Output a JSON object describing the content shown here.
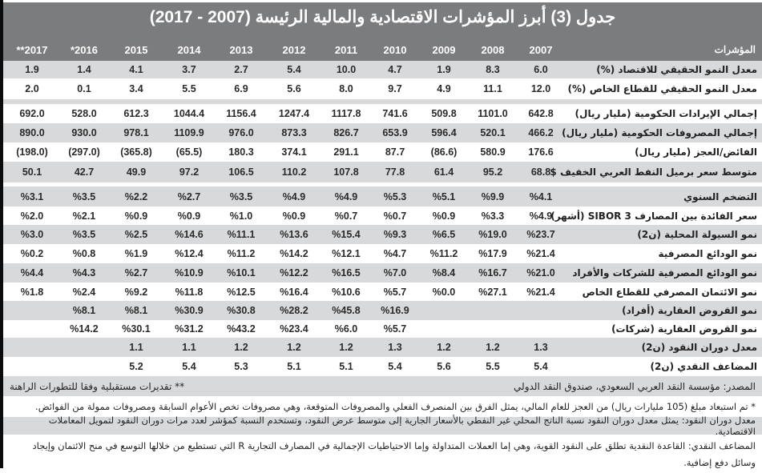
{
  "title": "جدول (3) أبرز المؤشرات الاقتصادية والمالية الرئيسة (2007 - 2017)",
  "header": {
    "indicators_label": "المؤشرات",
    "years": [
      "2007",
      "2008",
      "2009",
      "2010",
      "2011",
      "2012",
      "2013",
      "2014",
      "2015",
      "*2016",
      "**2017"
    ]
  },
  "rows": [
    {
      "label": "معدل النمو الحقيقي للاقتصاد (%)",
      "values": [
        "6.0",
        "8.3",
        "1.9",
        "4.7",
        "10.0",
        "5.4",
        "2.7",
        "3.7",
        "4.1",
        "1.4",
        "1.9"
      ]
    },
    {
      "label": "معدل النمو الحقيقي للقطاع الخاص (%)",
      "values": [
        "12.0",
        "11.1",
        "4.9",
        "9.7",
        "8.0",
        "5.6",
        "6.9",
        "5.5",
        "3.4",
        "0.1",
        "2.0"
      ]
    },
    {
      "label": "إجمالي الإيرادات الحكومية (مليار ريال)",
      "values": [
        "642.8",
        "1101.0",
        "509.8",
        "741.6",
        "1117.8",
        "1247.4",
        "1156.4",
        "1044.4",
        "612.3",
        "528.0",
        "692.0"
      ]
    },
    {
      "label": "إجمالي المصروفات الحكومية (مليار ريال)",
      "values": [
        "466.2",
        "520.1",
        "596.4",
        "653.9",
        "826.7",
        "873.3",
        "976.0",
        "1109.9",
        "978.1",
        "930.0",
        "890.0"
      ]
    },
    {
      "label": "الفائض/العجز (مليار ريال)",
      "values": [
        "176.6",
        "580.9",
        "(86.6)",
        "87.7",
        "291.1",
        "374.1",
        "180.3",
        "(65.5)",
        "(365.8)",
        "(297.0)",
        "(198.0)"
      ]
    },
    {
      "label": "متوسط سعر برميل النفط العربي الخفيف $",
      "values": [
        "68.8",
        "95.2",
        "61.4",
        "77.8",
        "107.8",
        "110.2",
        "106.5",
        "97.2",
        "49.9",
        "42.7",
        "50.1"
      ]
    },
    {
      "label": "التضخم السنوي",
      "values": [
        "%4.1",
        "%9.9",
        "%5.1",
        "%5.3",
        "%4.9",
        "%4.9",
        "%3.5",
        "%2.7",
        "%2.2",
        "%3.5",
        "%3.1"
      ]
    },
    {
      "label": "سعر الفائدة بين المصارف SIBOR 3 (أشهر)",
      "values": [
        "%4.9",
        "%3.3",
        "%0.9",
        "%0.7",
        "%0.7",
        "%0.9",
        "%1.0",
        "%0.9",
        "%0.9",
        "%2.1",
        "%2.0"
      ]
    },
    {
      "label": "نمو السيولة المحلية (ن2)",
      "values": [
        "%23.7",
        "%19.0",
        "%6.5",
        "%9.3",
        "%15.4",
        "%13.6",
        "%11.1",
        "%14.6",
        "%2.5",
        "%3.5",
        "%3.0"
      ]
    },
    {
      "label": "نمو الودائع المصرفية",
      "values": [
        "%21.4",
        "%17.9",
        "%11.2",
        "%4.7",
        "%12.1",
        "%14.2",
        "%11.2",
        "%12.4",
        "%1.9",
        "%0.8",
        "%0.2"
      ]
    },
    {
      "label": "نمو الودائع المصرفية للشركات والأفراد",
      "values": [
        "%21.0",
        "%16.7",
        "%8.4",
        "%7.0",
        "%16.5",
        "%12.2",
        "%10.1",
        "%10.9",
        "%2.7",
        "%4.3",
        "%4.4"
      ]
    },
    {
      "label": "نمو الائتمان المصرفي للقطاع الخاص",
      "values": [
        "%21.4",
        "%27.1",
        "%0.0",
        "%5.7",
        "%10.6",
        "%16.4",
        "%12.5",
        "%11.8",
        "%9.2",
        "%2.4",
        "%1.8"
      ]
    },
    {
      "label": "نمو القروض العقارية (أفراد)",
      "values": [
        "",
        "",
        "",
        "%16.9",
        "%45.8",
        "%28.2",
        "%30.8",
        "%30.9",
        "%8.1",
        "%8.1",
        ""
      ]
    },
    {
      "label": "نمو القروض العقارية (شركات)",
      "values": [
        "",
        "",
        "",
        "%5.7",
        "%6.0",
        "%23.4",
        "%43.2",
        "%31.2",
        "%30.1",
        "%14.2",
        ""
      ]
    },
    {
      "label": "معدل دوران النقود (ن2)",
      "values": [
        "1.3",
        "1.2",
        "1.2",
        "1.3",
        "1.2",
        "1.2",
        "1.2",
        "1.1",
        "1.1",
        "",
        ""
      ]
    },
    {
      "label": "المضاعف النقدي (ن2)",
      "values": [
        "5.4",
        "5.5",
        "5.6",
        "5.4",
        "5.1",
        "5.1",
        "5.3",
        "5.4",
        "5.2",
        "",
        ""
      ]
    }
  ],
  "notes": {
    "source": "المصدر: مؤسسة النقد العربي السعودي، صندوق النقد الدولي",
    "estimates": "** تقديرات مستقبلية وفقا للتطورات الراهنة",
    "deficit_note": "* تم استبعاد مبلغ (105 مليارات ريال) من العجز للعام المالي، يمثل الفرق بين المنصرف الفعلي والمصروفات المتوقعة، وهي مصروفات تخص الأعوام السابقة ومصروفات ممولة من الفوائض.",
    "velocity_note": "معدل دوران النقود: يمثل معدل دوران النقود نسبة الناتج المحلي غير النفطي بالأسعار الجارية إلى متوسط عرض النقود، وتستخدم النسبة كمؤشر لعدد مرات دوران النقود لتمويل المعاملات الاقتصادية.",
    "multiplier_note": "المضاعف النقدي: القاعدة النقدية تطلق على النقود القوية، وهي إما العملات المتداولة وإما الاحتياطيات الإجمالية في المصارف التجارية R التي تستطيع من خلالها التوسع في منح الائتمان وإيجاد وسائل دفع إضافية."
  },
  "colors": {
    "header_bg": "#7b7c7e",
    "row_gray": "#d8d9db",
    "row_white": "#ffffff",
    "text": "#222222"
  }
}
